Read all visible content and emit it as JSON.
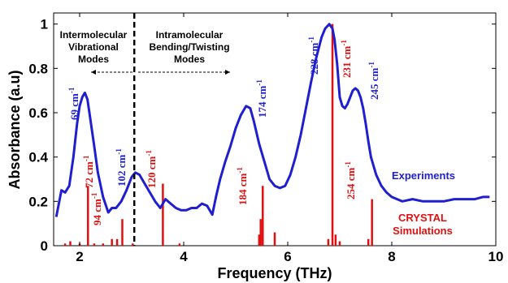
{
  "chart_data": {
    "type": "line",
    "xlabel": "Frequency (THz)",
    "ylabel": "Absorbance (a.u)",
    "xlim": [
      1.5,
      10
    ],
    "ylim": [
      0,
      1.05
    ],
    "xticks": [
      "2",
      "4",
      "6",
      "8",
      "10"
    ],
    "xtick_values": [
      2,
      4,
      6,
      8,
      10
    ],
    "yticks": [
      "0",
      "0.2",
      "0.4",
      "0.6",
      "0.8",
      "1"
    ],
    "ytick_values": [
      0,
      0.2,
      0.4,
      0.6,
      0.8,
      1
    ],
    "series": [
      {
        "name": "Experiments",
        "color": "#1f1fd0",
        "x": [
          1.55,
          1.65,
          1.72,
          1.8,
          1.88,
          1.95,
          2.0,
          2.05,
          2.1,
          2.15,
          2.2,
          2.28,
          2.35,
          2.45,
          2.55,
          2.62,
          2.7,
          2.8,
          2.9,
          3.0,
          3.07,
          3.15,
          3.25,
          3.35,
          3.45,
          3.55,
          3.65,
          3.75,
          3.85,
          3.95,
          4.05,
          4.15,
          4.25,
          4.35,
          4.45,
          4.55,
          4.62,
          4.7,
          4.8,
          4.9,
          5.0,
          5.1,
          5.2,
          5.28,
          5.35,
          5.45,
          5.55,
          5.65,
          5.75,
          5.85,
          5.95,
          6.05,
          6.15,
          6.25,
          6.35,
          6.45,
          6.55,
          6.65,
          6.72,
          6.8,
          6.86,
          6.9,
          6.95,
          7.0,
          7.05,
          7.1,
          7.15,
          7.2,
          7.25,
          7.3,
          7.35,
          7.4,
          7.45,
          7.5,
          7.55,
          7.6,
          7.7,
          7.8,
          7.9,
          8.0,
          8.2,
          8.4,
          8.6,
          8.8,
          9.0,
          9.2,
          9.4,
          9.6,
          9.75,
          9.88
        ],
        "values": [
          0.13,
          0.25,
          0.24,
          0.27,
          0.4,
          0.55,
          0.63,
          0.67,
          0.69,
          0.66,
          0.58,
          0.45,
          0.33,
          0.22,
          0.15,
          0.17,
          0.17,
          0.2,
          0.25,
          0.31,
          0.33,
          0.32,
          0.28,
          0.24,
          0.2,
          0.17,
          0.21,
          0.19,
          0.17,
          0.16,
          0.16,
          0.17,
          0.17,
          0.19,
          0.18,
          0.14,
          0.22,
          0.3,
          0.38,
          0.45,
          0.53,
          0.59,
          0.63,
          0.62,
          0.56,
          0.46,
          0.38,
          0.3,
          0.27,
          0.26,
          0.27,
          0.32,
          0.4,
          0.5,
          0.62,
          0.74,
          0.85,
          0.94,
          0.98,
          1.0,
          0.98,
          0.93,
          0.82,
          0.67,
          0.63,
          0.62,
          0.64,
          0.67,
          0.7,
          0.71,
          0.7,
          0.67,
          0.62,
          0.55,
          0.47,
          0.4,
          0.32,
          0.27,
          0.24,
          0.22,
          0.2,
          0.21,
          0.2,
          0.2,
          0.2,
          0.21,
          0.21,
          0.21,
          0.22,
          0.22
        ]
      },
      {
        "name": "CRYSTAL Simulations",
        "type": "stick",
        "color": "#e01010",
        "x": [
          1.72,
          1.82,
          2.0,
          2.16,
          2.28,
          2.45,
          2.62,
          2.72,
          2.82,
          3.02,
          3.6,
          3.92,
          5.45,
          5.48,
          5.52,
          5.75,
          6.78,
          6.86,
          6.92,
          7.0,
          7.55,
          7.62
        ],
        "values": [
          0.01,
          0.02,
          0.01,
          0.27,
          0.01,
          0.01,
          0.03,
          0.03,
          0.12,
          0.01,
          0.28,
          0.01,
          0.05,
          0.12,
          0.27,
          0.06,
          0.03,
          1.0,
          0.05,
          0.02,
          0.03,
          0.21
        ]
      }
    ],
    "peak_labels": [
      {
        "text": "69 cm",
        "sup": "-1",
        "color": "#1f1fd0",
        "x": 2.1,
        "y": 0.69
      },
      {
        "text": "72 cm",
        "sup": "-1",
        "color": "#e01010",
        "x": 2.16,
        "y": 0.27
      },
      {
        "text": "94 cm",
        "sup": "-1",
        "color": "#e01010",
        "x": 2.82,
        "y": 0.12
      },
      {
        "text": "102 cm",
        "sup": "-1",
        "color": "#1f1fd0",
        "x": 3.07,
        "y": 0.33
      },
      {
        "text": "120 cm",
        "sup": "-1",
        "color": "#e01010",
        "x": 3.6,
        "y": 0.28
      },
      {
        "text": "174 cm",
        "sup": "-1",
        "color": "#1f1fd0",
        "x": 5.3,
        "y": 0.63
      },
      {
        "text": "184 cm",
        "sup": "-1",
        "color": "#e01010",
        "x": 5.52,
        "y": 0.27
      },
      {
        "text": "228 cm",
        "sup": "-1",
        "color": "#1f1fd0",
        "x": 6.86,
        "y": 1.0
      },
      {
        "text": "231 cm",
        "sup": "-1",
        "color": "#e01010",
        "x": 6.92,
        "y": 1.0
      },
      {
        "text": "245 cm",
        "sup": "-1",
        "color": "#1f1fd0",
        "x": 7.32,
        "y": 0.71
      },
      {
        "text": "254 cm",
        "sup": "-1",
        "color": "#e01010",
        "x": 7.62,
        "y": 0.21
      }
    ],
    "divider_x": 3.05,
    "regions": {
      "left": [
        "Intermolecular",
        "Vibrational",
        "Modes"
      ],
      "right": [
        "Intramolecular",
        "Bending/Twisting",
        "Modes"
      ]
    },
    "legend": {
      "experiments": "Experiments",
      "simulations_line1": "CRYSTAL",
      "simulations_line2": "Simulations"
    }
  }
}
